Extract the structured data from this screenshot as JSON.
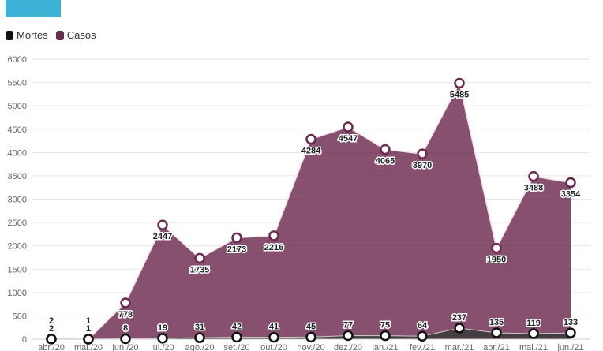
{
  "legend": {
    "items": [
      {
        "label": "Mortes",
        "color": "#111111"
      },
      {
        "label": "Casos",
        "color": "#6b2a4e"
      }
    ]
  },
  "chart_data": {
    "type": "area",
    "categories": [
      "abr./20",
      "mai./20",
      "jun./20",
      "jul./20",
      "ago./20",
      "set./20",
      "out./20",
      "nov./20",
      "dez./20",
      "jan./21",
      "fev./21",
      "mar./21",
      "abr./21",
      "mai./21",
      "jun./21"
    ],
    "series": [
      {
        "name": "Casos",
        "color": "#6b2a4e",
        "values": [
          2,
          1,
          778,
          2447,
          1735,
          2173,
          2216,
          4284,
          4547,
          4065,
          3970,
          5485,
          1950,
          3488,
          3354
        ]
      },
      {
        "name": "Mortes",
        "color": "#111111",
        "values": [
          2,
          1,
          8,
          19,
          31,
          42,
          41,
          45,
          77,
          75,
          64,
          237,
          135,
          119,
          133
        ]
      }
    ],
    "ylim": [
      0,
      6000
    ],
    "yticks": [
      0,
      500,
      1000,
      1500,
      2000,
      2500,
      3000,
      3500,
      4000,
      4500,
      5000,
      5500,
      6000
    ],
    "grid": true,
    "legend_position": "top-left"
  }
}
